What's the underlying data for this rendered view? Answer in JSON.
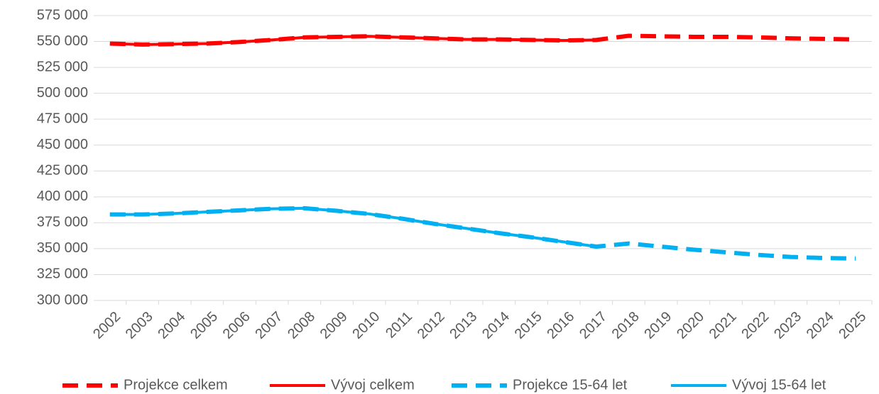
{
  "chart_data": {
    "type": "line",
    "categories": [
      "2002",
      "2003",
      "2004",
      "2005",
      "2006",
      "2007",
      "2008",
      "2009",
      "2010",
      "2011",
      "2012",
      "2013",
      "2014",
      "2015",
      "2016",
      "2017",
      "2018",
      "2019",
      "2020",
      "2021",
      "2022",
      "2023",
      "2024",
      "2025"
    ],
    "series": [
      {
        "name": "Projekce celkem",
        "color": "#ff0000",
        "dashed": true,
        "values": [
          548000,
          547000,
          547500,
          548000,
          549500,
          551500,
          554000,
          554500,
          555000,
          554000,
          553000,
          552000,
          552000,
          551500,
          551000,
          551500,
          555500,
          555000,
          554500,
          554500,
          554000,
          553000,
          552500,
          552000
        ]
      },
      {
        "name": "Vývoj celkem",
        "color": "#ff0000",
        "dashed": false,
        "values": [
          548000,
          547000,
          547500,
          548000,
          549500,
          551500,
          554000,
          554500,
          555000,
          554000,
          553000,
          552000,
          552000,
          551500,
          551000,
          551500,
          null,
          null,
          null,
          null,
          null,
          null,
          null,
          null
        ]
      },
      {
        "name": "Projekce 15-64 let",
        "color": "#00b0f0",
        "dashed": true,
        "values": [
          383000,
          383000,
          384000,
          385500,
          387000,
          388500,
          389000,
          386500,
          383500,
          379000,
          374000,
          369500,
          365000,
          361000,
          356500,
          352000,
          355000,
          352000,
          349000,
          346500,
          344000,
          342000,
          341000,
          340500
        ]
      },
      {
        "name": "Vývoj 15-64 let",
        "color": "#00b0f0",
        "dashed": false,
        "values": [
          383000,
          383000,
          384000,
          385500,
          387000,
          388500,
          389000,
          386500,
          383500,
          379000,
          374000,
          369500,
          365000,
          361000,
          356500,
          352000,
          null,
          null,
          null,
          null,
          null,
          null,
          null,
          null
        ]
      }
    ],
    "ylim": [
      300000,
      575000
    ],
    "yticks": [
      {
        "value": 300000,
        "label": "300 000"
      },
      {
        "value": 325000,
        "label": "325 000"
      },
      {
        "value": 350000,
        "label": "350 000"
      },
      {
        "value": 375000,
        "label": "375 000"
      },
      {
        "value": 400000,
        "label": "400 000"
      },
      {
        "value": 425000,
        "label": "425 000"
      },
      {
        "value": 450000,
        "label": "450 000"
      },
      {
        "value": 475000,
        "label": "475 000"
      },
      {
        "value": 500000,
        "label": "500 000"
      },
      {
        "value": 525000,
        "label": "525 000"
      },
      {
        "value": 550000,
        "label": "550 000"
      },
      {
        "value": 575000,
        "label": "575 000"
      }
    ],
    "grid": true,
    "legend": "bottom"
  }
}
